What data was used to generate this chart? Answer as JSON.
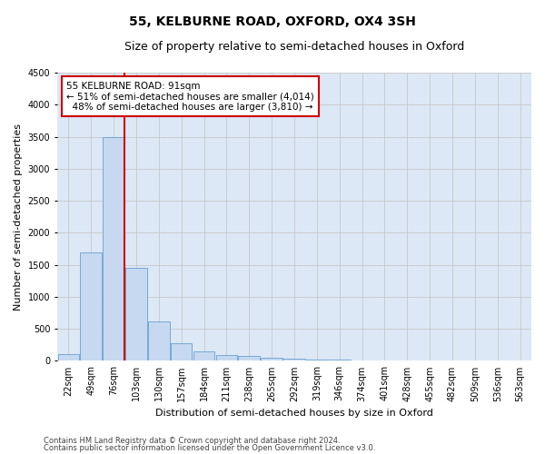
{
  "title": "55, KELBURNE ROAD, OXFORD, OX4 3SH",
  "subtitle": "Size of property relative to semi-detached houses in Oxford",
  "xlabel": "Distribution of semi-detached houses by size in Oxford",
  "ylabel": "Number of semi-detached properties",
  "footer1": "Contains HM Land Registry data © Crown copyright and database right 2024.",
  "footer2": "Contains public sector information licensed under the Open Government Licence v3.0.",
  "property_label": "55 KELBURNE ROAD: 91sqm",
  "smaller_pct": 51,
  "smaller_count": 4014,
  "larger_pct": 48,
  "larger_count": 3810,
  "bins": [
    22,
    49,
    76,
    103,
    130,
    157,
    184,
    211,
    238,
    265,
    292,
    319,
    346,
    374,
    401,
    428,
    455,
    482,
    509,
    536,
    563
  ],
  "counts": [
    100,
    1700,
    3500,
    1450,
    620,
    270,
    150,
    90,
    70,
    50,
    30,
    20,
    15,
    10,
    5,
    3,
    2,
    2,
    1,
    1,
    0
  ],
  "bar_color": "#c6d9f0",
  "bar_edge_color": "#6a9fd0",
  "vline_color": "#cc0000",
  "annotation_box_color": "#cc0000",
  "ylim": [
    0,
    4500
  ],
  "yticks": [
    0,
    500,
    1000,
    1500,
    2000,
    2500,
    3000,
    3500,
    4000,
    4500
  ],
  "grid_color": "#c8c8c8",
  "bg_color": "#dce8f5",
  "title_fontsize": 10,
  "subtitle_fontsize": 9,
  "tick_fontsize": 7,
  "ylabel_fontsize": 8,
  "xlabel_fontsize": 8,
  "annotation_fontsize": 7.5,
  "footer_fontsize": 6
}
